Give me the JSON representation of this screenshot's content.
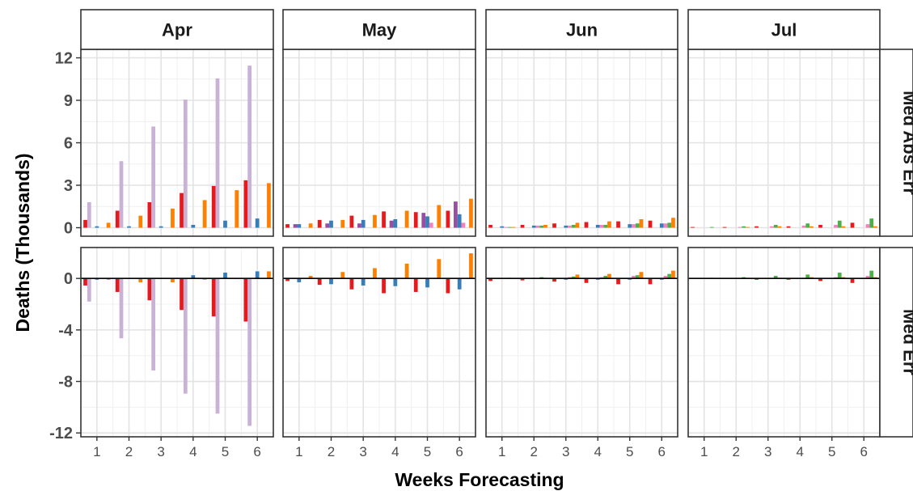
{
  "chart_data": {
    "type": "bar",
    "xlabel": "Weeks Forecasting",
    "ylabel": "Deaths (Thousands)",
    "columns": [
      "Apr",
      "May",
      "Jun",
      "Jul"
    ],
    "rows": [
      {
        "label": "Med Abs Err",
        "ylim": [
          -0.6,
          12.6
        ],
        "ticks": [
          0,
          3,
          6,
          9,
          12
        ],
        "tick_labels": [
          "0",
          "3",
          "6",
          "9",
          "12"
        ]
      },
      {
        "label": "Med Err",
        "ylim": [
          -12.3,
          2.4
        ],
        "ticks": [
          -12,
          -8,
          -4,
          0
        ],
        "tick_labels": [
          "-12",
          "-8",
          "-4",
          "0"
        ]
      }
    ],
    "x": [
      1,
      2,
      3,
      4,
      5,
      6
    ],
    "x_labels": [
      "1",
      "2",
      "3",
      "4",
      "5",
      "6"
    ],
    "colors": [
      "#e41a1c",
      "#cab2d6",
      "#984ea3",
      "#377eb8",
      "#f781bf",
      "#4daf4a",
      "#ff7f00"
    ],
    "panels": [
      {
        "row": 0,
        "col": 0,
        "bars": [
          [
            0.55,
            1.8,
            0,
            0.1,
            0,
            0,
            0.35
          ],
          [
            1.2,
            4.7,
            0,
            0.1,
            0,
            0,
            0.85
          ],
          [
            1.8,
            7.15,
            0,
            0.1,
            0,
            0,
            1.35
          ],
          [
            2.45,
            9.05,
            0,
            0.2,
            0,
            0,
            1.95
          ],
          [
            2.95,
            10.55,
            0,
            0.5,
            0,
            0,
            2.65
          ],
          [
            3.35,
            11.45,
            0,
            0.65,
            0,
            0,
            3.15
          ]
        ]
      },
      {
        "row": 0,
        "col": 1,
        "bars": [
          [
            0.25,
            0,
            0.25,
            0.25,
            0,
            0,
            0.3
          ],
          [
            0.55,
            0,
            0.3,
            0.5,
            0,
            0,
            0.55
          ],
          [
            0.85,
            0,
            0.3,
            0.55,
            0,
            0,
            0.9
          ],
          [
            1.15,
            0,
            0.5,
            0.6,
            0,
            0,
            1.2
          ],
          [
            1.1,
            0,
            1.05,
            0.8,
            0.35,
            0,
            1.6
          ],
          [
            1.2,
            0,
            1.85,
            0.95,
            0.35,
            0,
            2.05
          ]
        ]
      },
      {
        "row": 0,
        "col": 2,
        "bars": [
          [
            0.2,
            0,
            0,
            0.1,
            0.05,
            0.05,
            0.05
          ],
          [
            0.2,
            0,
            0,
            0.15,
            0.15,
            0.15,
            0.2
          ],
          [
            0.3,
            0,
            0,
            0.15,
            0.15,
            0.2,
            0.35
          ],
          [
            0.4,
            0,
            0,
            0.2,
            0.2,
            0.2,
            0.45
          ],
          [
            0.45,
            0,
            0,
            0.25,
            0.25,
            0.3,
            0.6
          ],
          [
            0.5,
            0,
            0,
            0.3,
            0.3,
            0.35,
            0.7
          ]
        ]
      },
      {
        "row": 0,
        "col": 3,
        "bars": [
          [
            0.05,
            0,
            0,
            0,
            0,
            0.05,
            0
          ],
          [
            0.05,
            0,
            0,
            0,
            0.05,
            0.1,
            0.05
          ],
          [
            0.1,
            0,
            0,
            0,
            0.1,
            0.2,
            0.1
          ],
          [
            0.1,
            0,
            0,
            0,
            0.15,
            0.3,
            0.1
          ],
          [
            0.2,
            0,
            0,
            0,
            0.2,
            0.5,
            0.1
          ],
          [
            0.35,
            0,
            0,
            0,
            0.25,
            0.65,
            0.1
          ]
        ]
      },
      {
        "row": 1,
        "col": 0,
        "bars": [
          [
            -0.55,
            -1.8,
            0,
            -0.1,
            0,
            0,
            -0.1
          ],
          [
            -1.05,
            -4.65,
            0,
            0,
            0,
            0,
            -0.3
          ],
          [
            -1.7,
            -7.15,
            0,
            0,
            0,
            0,
            -0.3
          ],
          [
            -2.45,
            -8.95,
            0,
            0.25,
            0,
            0,
            -0.1
          ],
          [
            -2.95,
            -10.5,
            0,
            0.45,
            0,
            0,
            0
          ],
          [
            -3.35,
            -11.45,
            0,
            0.55,
            0,
            0,
            0.55
          ]
        ]
      },
      {
        "row": 1,
        "col": 1,
        "bars": [
          [
            -0.2,
            0,
            0,
            -0.3,
            0,
            0,
            0.2
          ],
          [
            -0.5,
            0,
            0,
            -0.45,
            0,
            0,
            0.5
          ],
          [
            -0.85,
            0,
            0,
            -0.55,
            0,
            0,
            0.8
          ],
          [
            -1.15,
            0,
            0,
            -0.6,
            0,
            0,
            1.15
          ],
          [
            -1.05,
            0,
            0,
            -0.7,
            0,
            0,
            1.5
          ],
          [
            -1.15,
            0,
            0,
            -0.85,
            0,
            0,
            1.95
          ]
        ]
      },
      {
        "row": 1,
        "col": 2,
        "bars": [
          [
            -0.2,
            0,
            0,
            0,
            0,
            0.05,
            0
          ],
          [
            -0.15,
            0,
            0,
            0.05,
            0,
            0.1,
            0.05
          ],
          [
            -0.25,
            0,
            0,
            -0.1,
            0.1,
            0.15,
            0.3
          ],
          [
            -0.35,
            0,
            0,
            -0.1,
            0.1,
            0.2,
            0.35
          ],
          [
            -0.45,
            0,
            0,
            -0.1,
            0.2,
            0.25,
            0.5
          ],
          [
            -0.45,
            0,
            0,
            -0.1,
            0.2,
            0.35,
            0.6
          ]
        ]
      },
      {
        "row": 1,
        "col": 3,
        "bars": [
          [
            -0.05,
            0,
            0,
            0,
            0,
            0.05,
            0
          ],
          [
            -0.05,
            0,
            0,
            0,
            0,
            0.1,
            0.05
          ],
          [
            -0.1,
            0,
            0,
            0,
            0,
            0.2,
            0.05
          ],
          [
            -0.1,
            0,
            0,
            0,
            0.05,
            0.3,
            0.1
          ],
          [
            -0.2,
            0,
            0,
            0,
            0.1,
            0.45,
            0.1
          ],
          [
            -0.35,
            0,
            0,
            0,
            0.2,
            0.6,
            0.1
          ]
        ]
      }
    ]
  }
}
